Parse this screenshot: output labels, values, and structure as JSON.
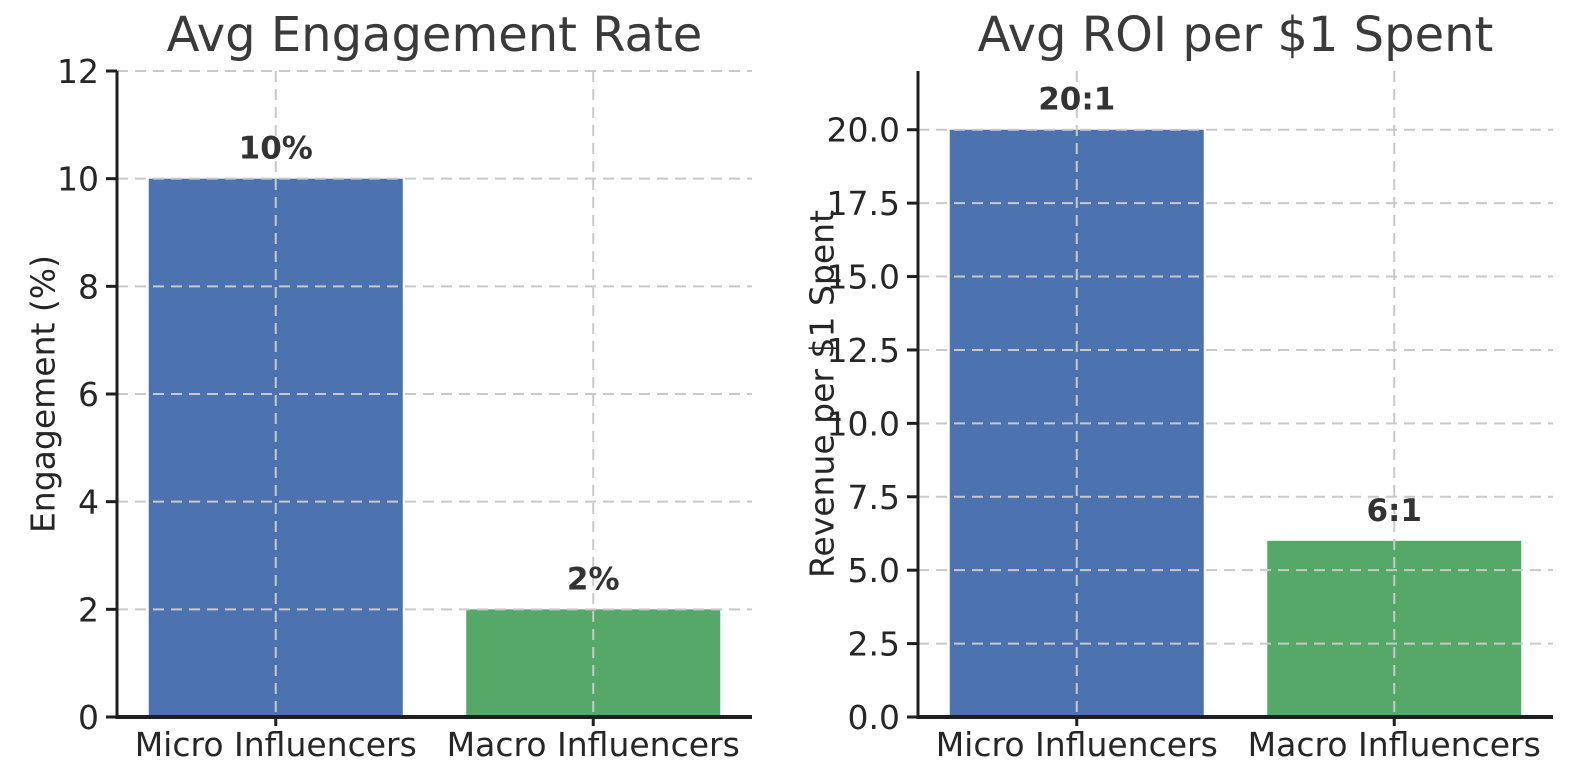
{
  "figure": {
    "background_color": "#ffffff"
  },
  "styles": {
    "bar_blue": "#4C72B0",
    "bar_green": "#55A868",
    "grid_color": "#c9c9c9",
    "spine_color": "#1f1f1f",
    "tick_text_color": "#262626",
    "title_color": "#3a3a3a",
    "value_label_color": "#333333"
  },
  "chart_data": [
    {
      "type": "bar",
      "title": "Avg Engagement Rate",
      "xlabel": "",
      "ylabel": "Engagement (%)",
      "categories": [
        "Micro Influencers",
        "Macro Influencers"
      ],
      "values": [
        10,
        2
      ],
      "bar_labels": [
        "10%",
        "2%"
      ],
      "bar_colors": [
        "#4C72B0",
        "#55A868"
      ],
      "ylim": [
        0,
        12
      ],
      "yticks": [
        0,
        2,
        4,
        6,
        8,
        10,
        12
      ],
      "ytick_labels": [
        "0",
        "2",
        "4",
        "6",
        "8",
        "10",
        "12"
      ],
      "grid": true,
      "grid_style": "dashed",
      "legend": "none"
    },
    {
      "type": "bar",
      "title": "Avg ROI per $1 Spent",
      "xlabel": "",
      "ylabel": "Revenue per $1 Spent",
      "categories": [
        "Micro Influencers",
        "Macro Influencers"
      ],
      "values": [
        20,
        6
      ],
      "bar_labels": [
        "20:1",
        "6:1"
      ],
      "bar_colors": [
        "#4C72B0",
        "#55A868"
      ],
      "ylim": [
        0,
        22
      ],
      "yticks": [
        0,
        2.5,
        5,
        7.5,
        10,
        12.5,
        15,
        17.5,
        20
      ],
      "ytick_labels": [
        "0.0",
        "2.5",
        "5.0",
        "7.5",
        "10.0",
        "12.5",
        "15.0",
        "17.5",
        "20.0"
      ],
      "grid": true,
      "grid_style": "dashed",
      "legend": "none"
    }
  ]
}
